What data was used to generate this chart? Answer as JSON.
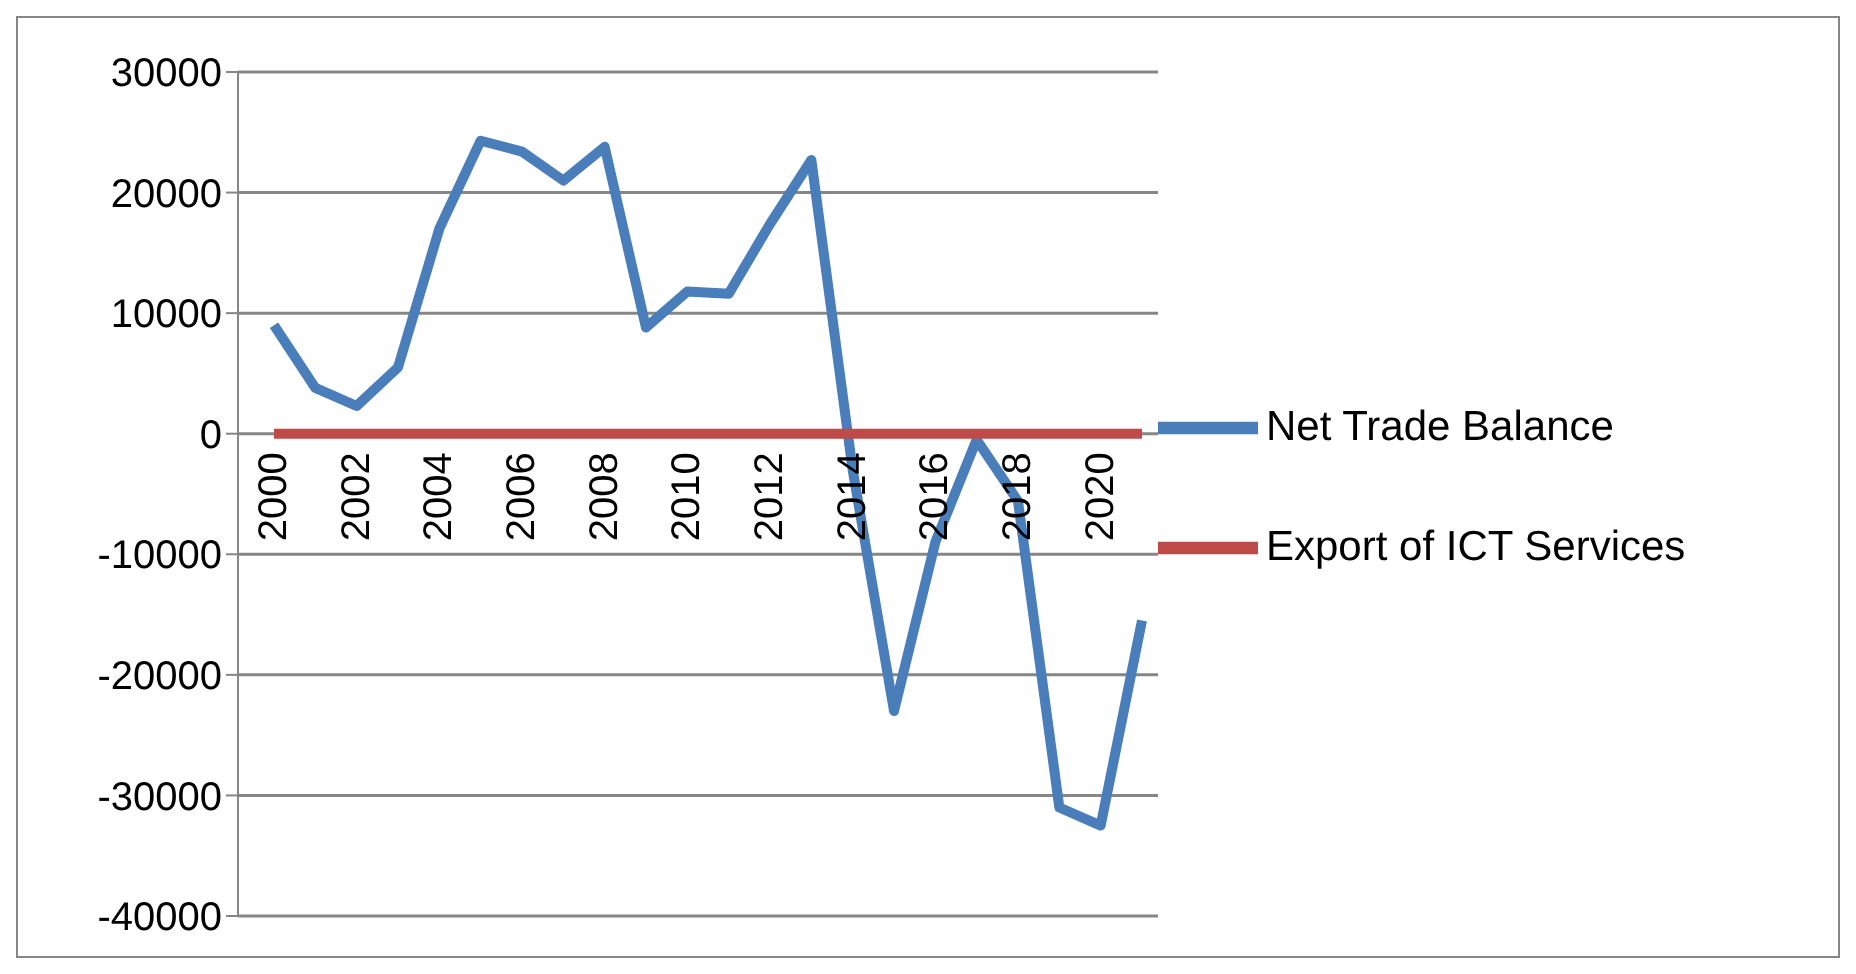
{
  "chart_data": {
    "type": "line",
    "categories": [
      "2000",
      null,
      "2002",
      null,
      "2004",
      null,
      "2006",
      null,
      "2008",
      null,
      "2010",
      null,
      "2012",
      null,
      "2014",
      null,
      "2016",
      null,
      "2018",
      null,
      "2020",
      null
    ],
    "series": [
      {
        "name": "Net Trade Balance",
        "color": "#4a7ebb",
        "values": [
          9000,
          3800,
          2300,
          5500,
          17000,
          24300,
          23400,
          21000,
          23800,
          8800,
          11800,
          11600,
          17400,
          22700,
          -3000,
          -23000,
          -9000,
          -500,
          -5600,
          -31000,
          -32500,
          -15500
        ]
      },
      {
        "name": "Export of ICT Services",
        "color": "#be4b48",
        "values": [
          0,
          0,
          0,
          0,
          0,
          0,
          0,
          0,
          0,
          0,
          0,
          0,
          0,
          0,
          0,
          0,
          0,
          0,
          0,
          0,
          0,
          0
        ]
      }
    ],
    "ylim": [
      -40000,
      30000
    ],
    "yticks": [
      -40000,
      -30000,
      -20000,
      -10000,
      0,
      10000,
      20000,
      30000
    ],
    "grid": "y",
    "legend": "right",
    "marker": "none",
    "line_style": "solid"
  }
}
